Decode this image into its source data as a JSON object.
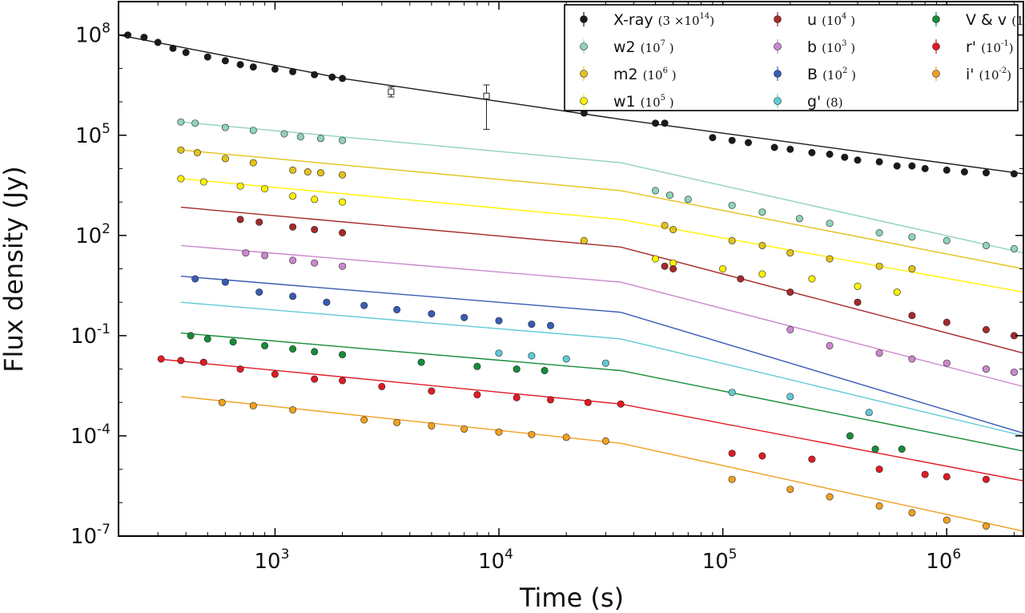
{
  "chart_data": {
    "type": "scatter",
    "title": "",
    "xlabel": "Time (s)",
    "ylabel": "Flux density (Jy)",
    "xscale": "log",
    "yscale": "log",
    "xlim": [
      200,
      2200000
    ],
    "ylim": [
      1e-07,
      1000000000.0
    ],
    "grid": false,
    "legend_position": "top-right",
    "x_ticks": [
      {
        "base": "10",
        "exp": "3",
        "value": 1000
      },
      {
        "base": "10",
        "exp": "4",
        "value": 10000
      },
      {
        "base": "10",
        "exp": "5",
        "value": 100000
      },
      {
        "base": "10",
        "exp": "6",
        "value": 1000000
      }
    ],
    "y_ticks": [
      {
        "base": "10",
        "exp": "-7",
        "value": 1e-07
      },
      {
        "base": "10",
        "exp": "-4",
        "value": 0.0001
      },
      {
        "base": "10",
        "exp": "-1",
        "value": 0.1
      },
      {
        "base": "10",
        "exp": "2",
        "value": 100
      },
      {
        "base": "10",
        "exp": "5",
        "value": 100000
      },
      {
        "base": "10",
        "exp": "8",
        "value": 100000000
      }
    ],
    "series": [
      {
        "name": "X-ray",
        "scale": "(3 ×10",
        "scale_exp": "14",
        "scale_close": ")",
        "color": "#1a1a1a",
        "model": [
          [
            200,
            100000000
          ],
          [
            2000,
            5000000
          ],
          [
            35000,
            300000
          ],
          [
            2200000,
            7000
          ]
        ],
        "points": [
          [
            220,
            100000000
          ],
          [
            260,
            85000000
          ],
          [
            300,
            60000000
          ],
          [
            350,
            40000000
          ],
          [
            400,
            30000000
          ],
          [
            500,
            22000000
          ],
          [
            600,
            17000000
          ],
          [
            700,
            13000000
          ],
          [
            800,
            11000000
          ],
          [
            1000,
            9500000
          ],
          [
            1200,
            8000000
          ],
          [
            1500,
            6500000
          ],
          [
            1800,
            5500000
          ],
          [
            2000,
            5000000
          ],
          [
            24000,
            460000
          ],
          [
            50000,
            230000
          ],
          [
            55000,
            230000
          ],
          [
            90000,
            85000
          ],
          [
            110000,
            70000
          ],
          [
            130000,
            60000
          ],
          [
            170000,
            43000
          ],
          [
            200000,
            38000
          ],
          [
            250000,
            30000
          ],
          [
            300000,
            27000
          ],
          [
            350000,
            22000
          ],
          [
            400000,
            18000
          ],
          [
            500000,
            16000
          ],
          [
            600000,
            12000
          ],
          [
            700000,
            12000
          ],
          [
            800000,
            10000
          ],
          [
            1000000,
            9000
          ],
          [
            1200000,
            8000
          ],
          [
            1500000,
            7500
          ],
          [
            2000000,
            7000
          ]
        ],
        "open_points": [
          [
            3300,
            2000000,
            1400000,
            2800000
          ],
          [
            8800,
            1500000,
            150000,
            3200000
          ]
        ]
      },
      {
        "name": "w2",
        "scale": "(10",
        "scale_exp": "7",
        "scale_close": " )",
        "color": "#8fd3b8",
        "model": [
          [
            380,
            250000
          ],
          [
            35000,
            15000
          ],
          [
            2200000,
            30
          ]
        ],
        "points": [
          [
            380,
            250000
          ],
          [
            440,
            230000
          ],
          [
            600,
            170000
          ],
          [
            800,
            140000
          ],
          [
            1100,
            110000
          ],
          [
            1300,
            90000
          ],
          [
            1600,
            80000
          ],
          [
            2000,
            70000
          ],
          [
            50000,
            2200
          ],
          [
            58000,
            1600
          ],
          [
            70000,
            1200
          ],
          [
            110000,
            800
          ],
          [
            150000,
            500
          ],
          [
            220000,
            320
          ],
          [
            300000,
            230
          ],
          [
            500000,
            120
          ],
          [
            700000,
            90
          ],
          [
            1000000,
            70
          ],
          [
            1500000,
            50
          ],
          [
            2000000,
            40
          ]
        ]
      },
      {
        "name": "m2",
        "scale": "(10",
        "scale_exp": "6",
        "scale_close": " )",
        "color": "#e3c21b",
        "model": [
          [
            380,
            36000
          ],
          [
            35000,
            2200
          ],
          [
            2200000,
            10
          ]
        ],
        "points": [
          [
            380,
            36000
          ],
          [
            450,
            30000
          ],
          [
            600,
            20000
          ],
          [
            800,
            15000
          ],
          [
            1200,
            9000
          ],
          [
            1400,
            8000
          ],
          [
            1600,
            7500
          ],
          [
            2000,
            6500
          ],
          [
            24000,
            70
          ],
          [
            55000,
            200
          ],
          [
            60000,
            150
          ],
          [
            110000,
            70
          ],
          [
            150000,
            50
          ],
          [
            200000,
            30
          ],
          [
            300000,
            20
          ],
          [
            500000,
            12
          ],
          [
            700000,
            10
          ]
        ]
      },
      {
        "name": "w1",
        "scale": "(10",
        "scale_exp": "5",
        "scale_close": " )",
        "color": "#fff200",
        "model": [
          [
            380,
            5000
          ],
          [
            35000,
            300
          ],
          [
            2200000,
            2
          ]
        ],
        "points": [
          [
            380,
            5000
          ],
          [
            480,
            4000
          ],
          [
            700,
            3000
          ],
          [
            900,
            2500
          ],
          [
            1200,
            1500
          ],
          [
            1500,
            1200
          ],
          [
            2000,
            1000
          ],
          [
            50000,
            20
          ],
          [
            60000,
            15
          ],
          [
            100000,
            10
          ],
          [
            150000,
            7
          ],
          [
            250000,
            5
          ],
          [
            400000,
            3
          ],
          [
            600000,
            2
          ]
        ]
      },
      {
        "name": "u",
        "scale": "(10",
        "scale_exp": "4",
        "scale_close": " )",
        "color": "#a52a2a",
        "model": [
          [
            380,
            700
          ],
          [
            35000,
            45
          ],
          [
            2200000,
            0.03
          ]
        ],
        "points": [
          [
            700,
            300
          ],
          [
            850,
            250
          ],
          [
            1200,
            180
          ],
          [
            1500,
            150
          ],
          [
            2000,
            120
          ],
          [
            55000,
            12
          ],
          [
            60000,
            10
          ],
          [
            120000,
            5
          ],
          [
            200000,
            2
          ],
          [
            400000,
            1
          ],
          [
            700000,
            0.4
          ],
          [
            1000000,
            0.25
          ],
          [
            1500000,
            0.15
          ],
          [
            2000000,
            0.1
          ]
        ]
      },
      {
        "name": "b",
        "scale": "(10",
        "scale_exp": "3",
        "scale_close": " )",
        "color": "#cc88cc",
        "model": [
          [
            380,
            50
          ],
          [
            35000,
            4
          ],
          [
            2200000,
            0.003
          ]
        ],
        "points": [
          [
            740,
            30
          ],
          [
            900,
            25
          ],
          [
            1200,
            18
          ],
          [
            1500,
            15
          ],
          [
            2000,
            12
          ],
          [
            200000,
            0.15
          ],
          [
            300000,
            0.05
          ],
          [
            500000,
            0.03
          ],
          [
            700000,
            0.02
          ],
          [
            1000000,
            0.015
          ],
          [
            1500000,
            0.01
          ],
          [
            2000000,
            0.008
          ]
        ]
      },
      {
        "name": "B",
        "scale": "(10",
        "scale_exp": "2",
        "scale_close": " )",
        "color": "#3a5bb5",
        "model": [
          [
            380,
            6
          ],
          [
            35000,
            0.5
          ],
          [
            2200000,
            0.00012
          ]
        ],
        "points": [
          [
            440,
            5
          ],
          [
            600,
            4
          ],
          [
            850,
            2
          ],
          [
            1200,
            1.5
          ],
          [
            1700,
            1
          ],
          [
            2500,
            0.8
          ],
          [
            3500,
            0.6
          ],
          [
            5000,
            0.45
          ],
          [
            7000,
            0.35
          ],
          [
            10000,
            0.28
          ],
          [
            14000,
            0.22
          ],
          [
            17000,
            0.2
          ]
        ]
      },
      {
        "name": "g'",
        "scale": "(8",
        "scale_exp": "",
        "scale_close": ")",
        "color": "#5fcbd4",
        "model": [
          [
            380,
            1
          ],
          [
            35000,
            0.08
          ],
          [
            2200000,
            0.0001
          ]
        ],
        "points": [
          [
            10000,
            0.03
          ],
          [
            14000,
            0.025
          ],
          [
            20000,
            0.02
          ],
          [
            30000,
            0.015
          ],
          [
            110000,
            0.002
          ],
          [
            200000,
            0.0015
          ],
          [
            450000,
            0.0005
          ]
        ]
      },
      {
        "name": "V & v",
        "scale": "(1",
        "scale_exp": "",
        "scale_close": ")",
        "color": "#168c3a",
        "model": [
          [
            380,
            0.12
          ],
          [
            35000,
            0.009
          ],
          [
            2200000,
            3.5e-05
          ]
        ],
        "points": [
          [
            420,
            0.1
          ],
          [
            500,
            0.08
          ],
          [
            650,
            0.065
          ],
          [
            900,
            0.05
          ],
          [
            1200,
            0.04
          ],
          [
            1500,
            0.033
          ],
          [
            2000,
            0.027
          ],
          [
            4500,
            0.016
          ],
          [
            8000,
            0.012
          ],
          [
            12000,
            0.01
          ],
          [
            16000,
            0.009
          ],
          [
            370000,
            0.0001
          ],
          [
            480000,
            4e-05
          ],
          [
            630000,
            4e-05
          ]
        ]
      },
      {
        "name": "r'",
        "scale": "(10",
        "scale_exp": "-1",
        "scale_close": ")",
        "color": "#e01b24",
        "model": [
          [
            300,
            0.02
          ],
          [
            35000,
            0.0009
          ],
          [
            2200000,
            4.5e-06
          ]
        ],
        "points": [
          [
            310,
            0.02
          ],
          [
            380,
            0.018
          ],
          [
            480,
            0.016
          ],
          [
            700,
            0.01
          ],
          [
            1000,
            0.007
          ],
          [
            1500,
            0.005
          ],
          [
            2000,
            0.0045
          ],
          [
            3000,
            0.003
          ],
          [
            5000,
            0.0022
          ],
          [
            8000,
            0.0017
          ],
          [
            12000,
            0.0014
          ],
          [
            17000,
            0.0012
          ],
          [
            25000,
            0.001
          ],
          [
            35000,
            0.0009
          ],
          [
            110000,
            3e-05
          ],
          [
            150000,
            2.5e-05
          ],
          [
            250000,
            2e-05
          ],
          [
            500000,
            1e-05
          ],
          [
            800000,
            7e-06
          ],
          [
            1000000,
            6e-06
          ],
          [
            1500000,
            5e-06
          ]
        ]
      },
      {
        "name": "i'",
        "scale": "(10",
        "scale_exp": "-2",
        "scale_close": ")",
        "color": "#f0a020",
        "model": [
          [
            380,
            0.0015
          ],
          [
            35000,
            6e-05
          ],
          [
            2200000,
            1.4e-07
          ]
        ],
        "points": [
          [
            580,
            0.001
          ],
          [
            800,
            0.0008
          ],
          [
            1200,
            0.0006
          ],
          [
            2500,
            0.0003
          ],
          [
            3500,
            0.00025
          ],
          [
            5000,
            0.0002
          ],
          [
            7000,
            0.00016
          ],
          [
            10000,
            0.00013
          ],
          [
            14000,
            0.00011
          ],
          [
            20000,
            9e-05
          ],
          [
            30000,
            7e-05
          ],
          [
            110000,
            5e-06
          ],
          [
            200000,
            2.5e-06
          ],
          [
            300000,
            1.5e-06
          ],
          [
            500000,
            8e-07
          ],
          [
            700000,
            5e-07
          ],
          [
            1000000,
            3e-07
          ],
          [
            1500000,
            2e-07
          ]
        ]
      }
    ]
  }
}
